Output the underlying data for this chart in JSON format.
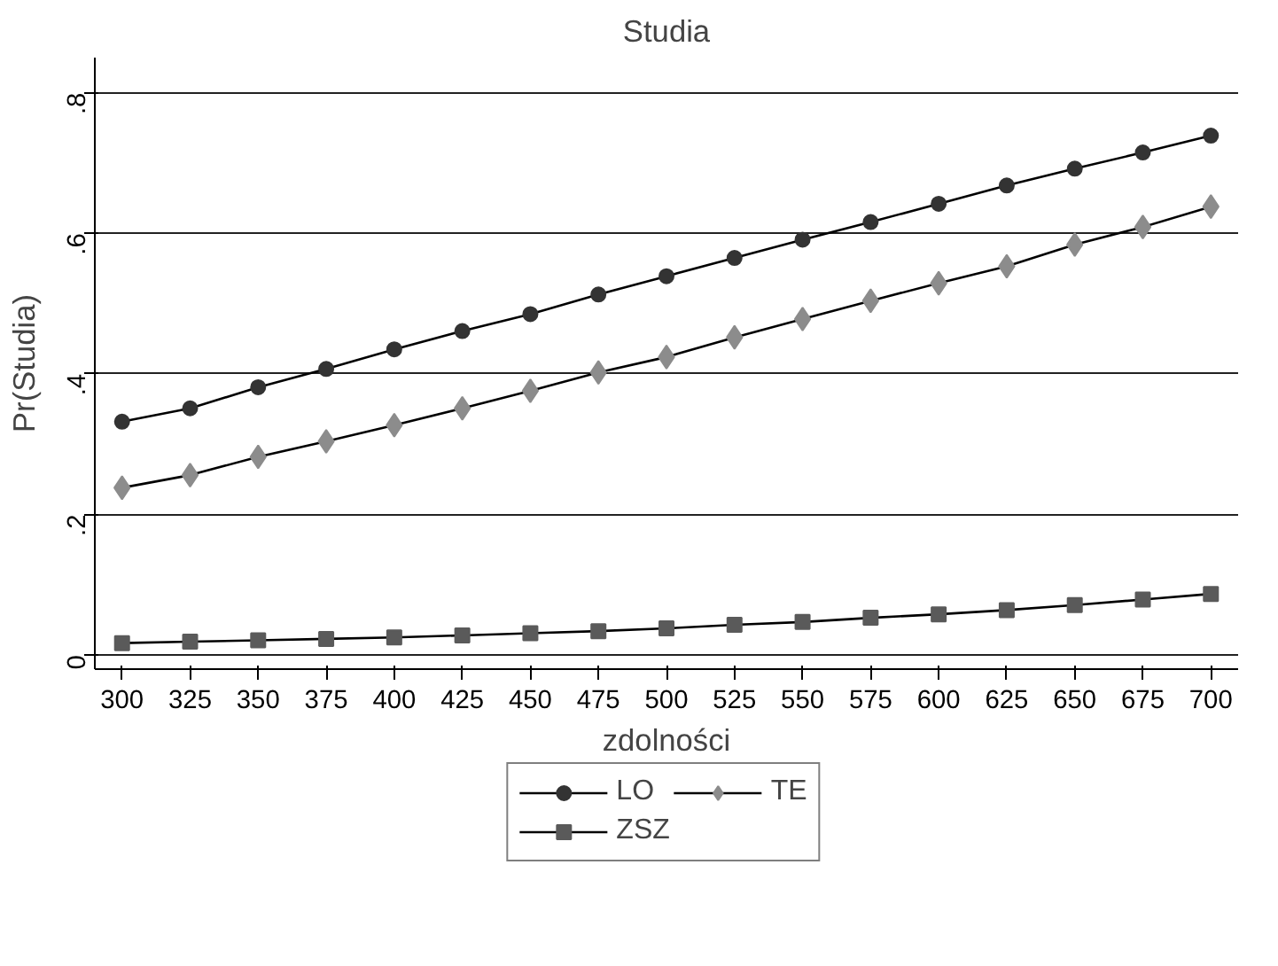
{
  "chart_data": {
    "type": "line",
    "title": "Studia",
    "xlabel": "zdolności",
    "ylabel": "Pr(Studia)",
    "x": [
      300,
      325,
      350,
      375,
      400,
      425,
      450,
      475,
      500,
      525,
      550,
      575,
      600,
      625,
      650,
      675,
      700
    ],
    "series": [
      {
        "name": "LO",
        "color": "#333333",
        "marker": "circle",
        "values": [
          0.332,
          0.351,
          0.381,
          0.407,
          0.435,
          0.461,
          0.485,
          0.513,
          0.539,
          0.565,
          0.591,
          0.616,
          0.642,
          0.668,
          0.692,
          0.715,
          0.739
        ]
      },
      {
        "name": "TE",
        "color": "#8c8c8c",
        "marker": "diamond",
        "values": [
          0.238,
          0.256,
          0.282,
          0.304,
          0.327,
          0.351,
          0.376,
          0.402,
          0.424,
          0.452,
          0.478,
          0.504,
          0.529,
          0.553,
          0.584,
          0.609,
          0.638
        ]
      },
      {
        "name": "ZSZ",
        "color": "#5a5a5a",
        "marker": "square",
        "values": [
          0.017,
          0.019,
          0.021,
          0.023,
          0.025,
          0.028,
          0.031,
          0.034,
          0.038,
          0.043,
          0.047,
          0.053,
          0.058,
          0.064,
          0.071,
          0.079,
          0.087
        ]
      }
    ],
    "xlim": [
      290,
      710
    ],
    "ylim": [
      -0.02,
      0.85
    ],
    "xticks": [
      300,
      325,
      350,
      375,
      400,
      425,
      450,
      475,
      500,
      525,
      550,
      575,
      600,
      625,
      650,
      675,
      700
    ],
    "yticks": [
      0,
      {
        "value": 0.2,
        "label": ".2"
      },
      {
        "value": 0.4,
        "label": ".4"
      },
      {
        "value": 0.6,
        "label": ".6"
      },
      {
        "value": 0.8,
        "label": ".8"
      }
    ],
    "grid": "y",
    "legend": "bottom",
    "line_style": "solid"
  }
}
